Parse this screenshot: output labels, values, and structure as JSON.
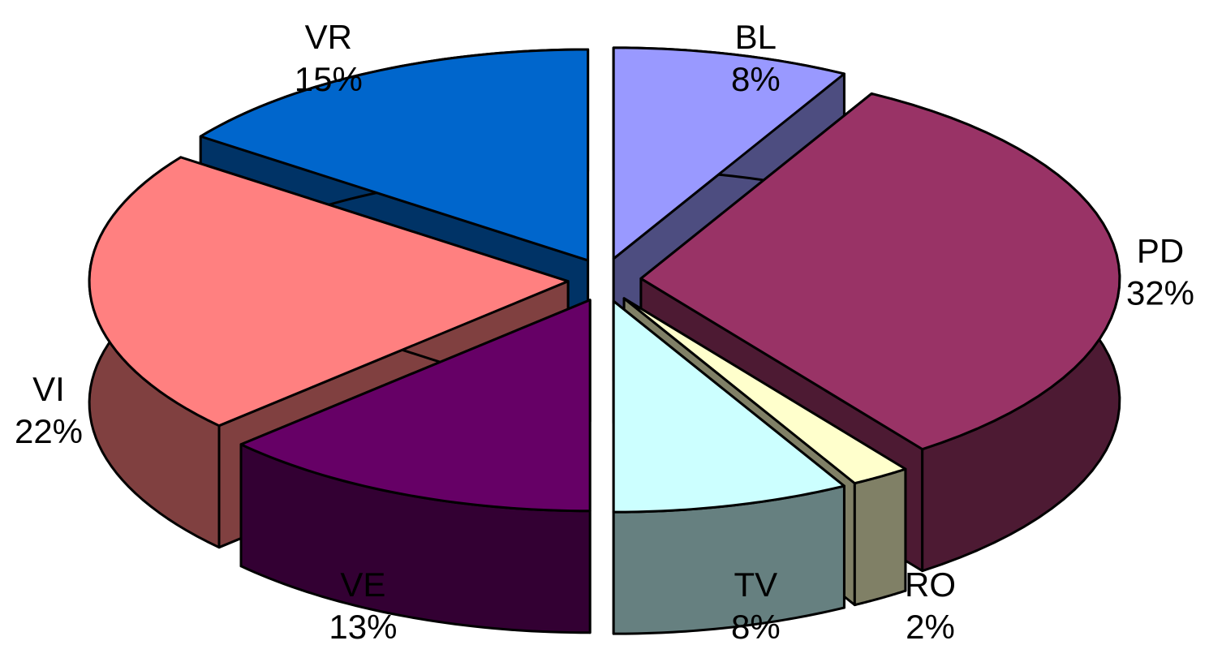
{
  "chart_data": {
    "type": "pie",
    "style": "3d-exploded",
    "title": "",
    "legend": "none",
    "slices": [
      {
        "label": "BL",
        "pct_label": "8%",
        "value": 8,
        "color": "#9999FF"
      },
      {
        "label": "PD",
        "pct_label": "32%",
        "value": 32,
        "color": "#993366"
      },
      {
        "label": "RO",
        "pct_label": "2%",
        "value": 2,
        "color": "#FFFFCC"
      },
      {
        "label": "TV",
        "pct_label": "8%",
        "value": 8,
        "color": "#CCFFFF"
      },
      {
        "label": "VE",
        "pct_label": "13%",
        "value": 13,
        "color": "#660066"
      },
      {
        "label": "VI",
        "pct_label": "22%",
        "value": 22,
        "color": "#FF8080"
      },
      {
        "label": "VR",
        "pct_label": "15%",
        "value": 15,
        "color": "#0066CC"
      }
    ]
  }
}
